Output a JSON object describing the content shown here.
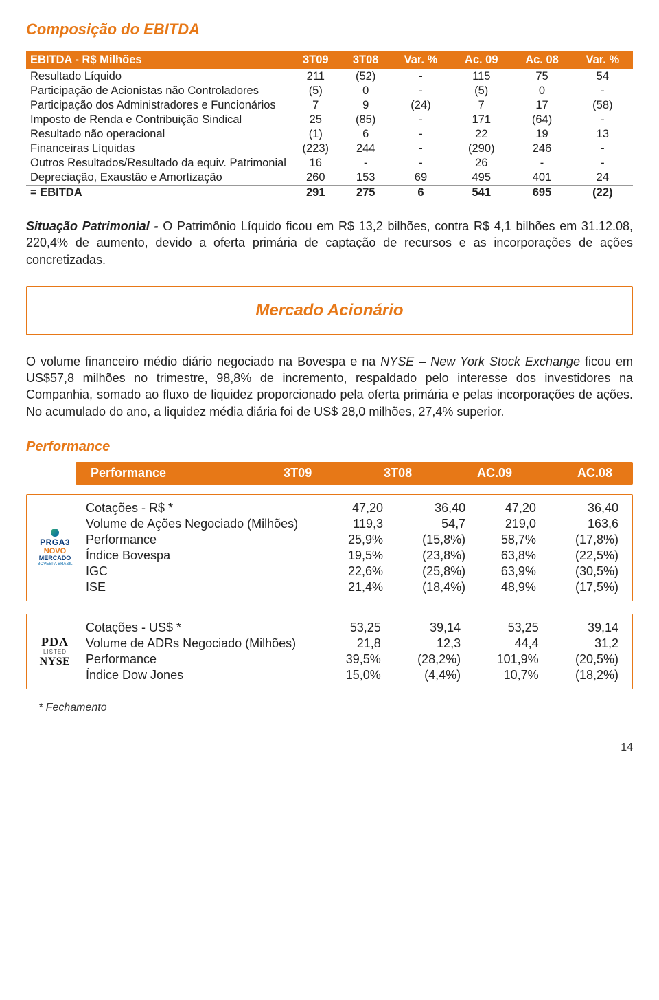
{
  "heading1": "Composição do EBITDA",
  "table1": {
    "header": [
      "EBITDA - R$ Milhões",
      "3T09",
      "3T08",
      "Var. %",
      "Ac. 09",
      "Ac. 08",
      "Var. %"
    ],
    "rows": [
      [
        "Resultado Líquido",
        "211",
        "(52)",
        "-",
        "115",
        "75",
        "54"
      ],
      [
        "Participação de Acionistas não Controladores",
        "(5)",
        "0",
        "-",
        "(5)",
        "0",
        "-"
      ],
      [
        "Participação dos Administradores e Funcionários",
        "7",
        "9",
        "(24)",
        "7",
        "17",
        "(58)"
      ],
      [
        "Imposto de Renda e Contribuição Sindical",
        "25",
        "(85)",
        "-",
        "171",
        "(64)",
        "-"
      ],
      [
        "Resultado não operacional",
        "(1)",
        "6",
        "-",
        "22",
        "19",
        "13"
      ],
      [
        "Financeiras Líquidas",
        "(223)",
        "244",
        "-",
        "(290)",
        "246",
        "-"
      ],
      [
        "Outros Resultados/Resultado da equiv. Patrimonial",
        "16",
        "-",
        "-",
        "26",
        "-",
        "-"
      ],
      [
        "Depreciação, Exaustão e Amortização",
        "260",
        "153",
        "69",
        "495",
        "401",
        "24"
      ],
      [
        "= EBITDA",
        "291",
        "275",
        "6",
        "541",
        "695",
        "(22)"
      ]
    ]
  },
  "para1_lead": "Situação Patrimonial - ",
  "para1_body": "O Patrimônio Líquido ficou em R$ 13,2 bilhões, contra R$ 4,1 bilhões em 31.12.08, 220,4% de aumento, devido a oferta primária de captação de recursos e as incorporações de ações concretizadas.",
  "banner": "Mercado Acionário",
  "para2_a": "O volume financeiro médio diário negociado na Bovespa e na ",
  "para2_b": "NYSE – New York Stock Exchange",
  "para2_c": " ficou em US$57,8 milhões no trimestre, 98,8% de incremento, respaldado pelo interesse dos investidores na Companhia, somado ao fluxo de liquidez proporcionado pela oferta primária e pelas incorporações de ações.  No acumulado do ano, a liquidez média diária foi de US$ 28,0 milhões, 27,4% superior.",
  "heading_performance": "Performance",
  "perf_header": [
    "Performance",
    "3T09",
    "3T08",
    "AC.09",
    "AC.08"
  ],
  "perf_block1": {
    "logo": {
      "l1": "PRGA3",
      "l2": "NOVO",
      "l3": "MERCADO",
      "l4": "BOVESPA BRASIL"
    },
    "rows": [
      [
        "Cotações - R$ *",
        "47,20",
        "36,40",
        "47,20",
        "36,40"
      ],
      [
        "Volume de Ações Negociado (Milhões)",
        "119,3",
        "54,7",
        "219,0",
        "163,6"
      ],
      [
        "Performance",
        "25,9%",
        "(15,8%)",
        "58,7%",
        "(17,8%)"
      ],
      [
        "Índice Bovespa",
        "19,5%",
        "(23,8%)",
        "63,8%",
        "(22,5%)"
      ],
      [
        "IGC",
        "22,6%",
        "(25,8%)",
        "63,9%",
        "(30,5%)"
      ],
      [
        "ISE",
        "21,4%",
        "(18,4%)",
        "48,9%",
        "(17,5%)"
      ]
    ]
  },
  "perf_block2": {
    "logo": {
      "l1": "PDA",
      "l2": "LISTED",
      "l3": "NYSE"
    },
    "rows": [
      [
        "Cotações - US$ *",
        "53,25",
        "39,14",
        "53,25",
        "39,14"
      ],
      [
        "Volume de ADRs Negociado (Milhões)",
        "21,8",
        "12,3",
        "44,4",
        "31,2"
      ],
      [
        "Performance",
        "39,5%",
        "(28,2%)",
        "101,9%",
        "(20,5%)"
      ],
      [
        "Índice Dow Jones",
        "15,0%",
        "(4,4%)",
        "10,7%",
        "(18,2%)"
      ]
    ]
  },
  "footnote": "* Fechamento",
  "page_number": "14"
}
